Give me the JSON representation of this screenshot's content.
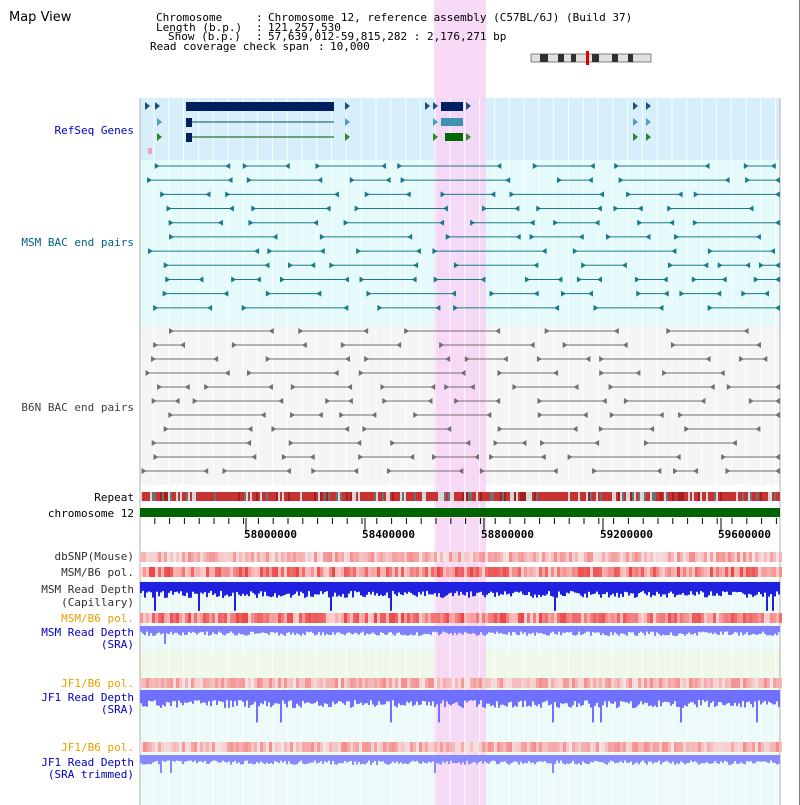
{
  "page": {
    "title": "Map View"
  },
  "info": {
    "chromosome_label": "Chromosome",
    "chromosome_value": "Chromosome 12, reference assembly (C57BL/6J) (Build 37)",
    "length_label": "Length (b.p.)",
    "length_value": "121,257,530",
    "show_label": "Show (b.p.)",
    "show_value": "57,639,012-59,815,282 : 2,176,271 bp",
    "coverage_label": "Read coverage check span",
    "coverage_value": "10,000"
  },
  "tracks": {
    "refseq": "RefSeq Genes",
    "msm_bac": "MSM BAC end pairs",
    "b6n_bac": "B6N BAC end pairs",
    "repeat": "Repeat",
    "chromosome": "chromosome 12",
    "dbsnp": "dbSNP(Mouse)",
    "msm_b6_pol_1": "MSM/B6 pol.",
    "msm_depth_cap_1": "MSM Read Depth",
    "msm_depth_cap_2": "(Capillary)",
    "msm_b6_pol_2": "MSM/B6 pol.",
    "msm_depth_sra_1": "MSM Read Depth",
    "msm_depth_sra_2": "(SRA)",
    "jf1_b6_pol_1": "JF1/B6 pol.",
    "jf1_depth_sra_1": "JF1 Read Depth",
    "jf1_depth_sra_2": "(SRA)",
    "jf1_b6_pol_2": "JF1/B6 pol.",
    "jf1_depth_trim_1": "JF1 Read Depth",
    "jf1_depth_trim_2": "(SRA trimmed)"
  },
  "axis": {
    "ticks": [
      "58000000",
      "58400000",
      "58800000",
      "59200000",
      "59600000"
    ]
  },
  "colors": {
    "highlight": "#f7d3f4",
    "chromosome": "#006400",
    "refseq_bg": "#d6effa",
    "msm_bg": "#e5fbfb",
    "b6n_bg": "#f5f5f7",
    "label_blue": "#0000c0",
    "label_teal": "#005f7f",
    "label_orange": "#e8a000"
  }
}
